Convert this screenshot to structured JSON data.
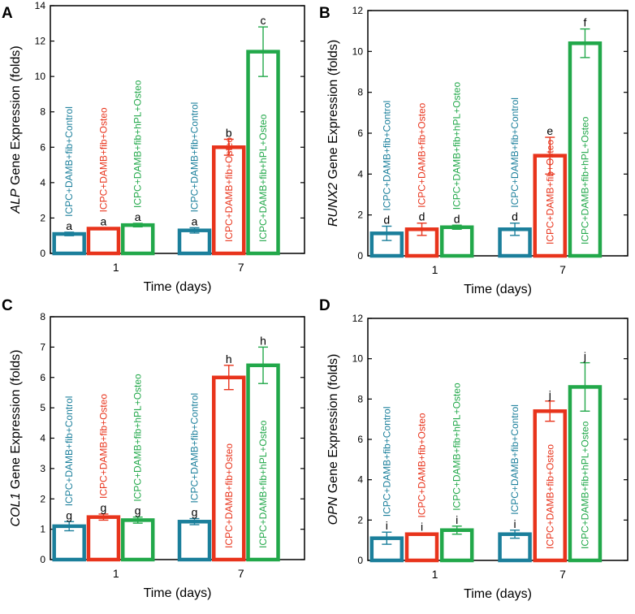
{
  "colors": {
    "control": "#1b7f9b",
    "osteo": "#e8341c",
    "hpl": "#22a84a",
    "axis": "#000000"
  },
  "chart_data": [
    {
      "panel": "A",
      "type": "bar",
      "gene": "ALP",
      "ylabel_suffix": "Gene Expression (folds)",
      "xlabel": "Time (days)",
      "categories": [
        "1",
        "7"
      ],
      "ylim": [
        0,
        14
      ],
      "yticks": [
        "0",
        "2",
        "4",
        "6",
        "8",
        "10",
        "12",
        "14"
      ],
      "series": [
        {
          "name": "ICPC+DAMB+fib+Control",
          "color_key": "control",
          "values": [
            1.1,
            1.3
          ],
          "errors": [
            0.1,
            0.15
          ],
          "letters": [
            "a",
            "a"
          ]
        },
        {
          "name": "ICPC+DAMB+fib+Osteo",
          "color_key": "osteo",
          "values": [
            1.4,
            6.0
          ],
          "errors": [
            0.05,
            0.45
          ],
          "letters": [
            "a",
            "b"
          ]
        },
        {
          "name": "ICPC+DAMB+fib+hPL+Osteo",
          "color_key": "hpl",
          "values": [
            1.6,
            11.4
          ],
          "errors": [
            0.1,
            1.4
          ],
          "letters": [
            "a",
            "c"
          ]
        }
      ]
    },
    {
      "panel": "B",
      "type": "bar",
      "gene": "RUNX2",
      "ylabel_suffix": "Gene Expression (folds)",
      "xlabel": "Time (days)",
      "categories": [
        "1",
        "7"
      ],
      "ylim": [
        0,
        12
      ],
      "yticks": [
        "0",
        "2",
        "4",
        "6",
        "8",
        "10",
        "12"
      ],
      "series": [
        {
          "name": "ICPC+DAMB+fib+Control",
          "color_key": "control",
          "values": [
            1.1,
            1.3
          ],
          "errors": [
            0.35,
            0.3
          ],
          "letters": [
            "d",
            "d"
          ]
        },
        {
          "name": "ICPC+DAMB+fib+Osteo",
          "color_key": "osteo",
          "values": [
            1.3,
            4.9
          ],
          "errors": [
            0.3,
            0.9
          ],
          "letters": [
            "d",
            "e"
          ]
        },
        {
          "name": "ICPC+DAMB+fib+hPL+Osteo",
          "color_key": "hpl",
          "values": [
            1.4,
            10.4
          ],
          "errors": [
            0.1,
            0.7
          ],
          "letters": [
            "d",
            "f"
          ]
        }
      ]
    },
    {
      "panel": "C",
      "type": "bar",
      "gene": "COL1",
      "ylabel_suffix": "Gene Expression (folds)",
      "xlabel": "Time (days)",
      "categories": [
        "1",
        "7"
      ],
      "ylim": [
        0,
        8
      ],
      "yticks": [
        "0",
        "1",
        "2",
        "3",
        "4",
        "5",
        "6",
        "7",
        "8"
      ],
      "series": [
        {
          "name": "ICPC+DAMB+fib+Control",
          "color_key": "control",
          "values": [
            1.1,
            1.25
          ],
          "errors": [
            0.15,
            0.1
          ],
          "letters": [
            "g",
            "g"
          ]
        },
        {
          "name": "ICPC+DAMB+fib+Osteo",
          "color_key": "osteo",
          "values": [
            1.4,
            6.0
          ],
          "errors": [
            0.1,
            0.4
          ],
          "letters": [
            "g",
            "h"
          ]
        },
        {
          "name": "ICPC+DAMB+fib+hPL+Osteo",
          "color_key": "hpl",
          "values": [
            1.3,
            6.4
          ],
          "errors": [
            0.1,
            0.6
          ],
          "letters": [
            "g",
            "h"
          ]
        }
      ]
    },
    {
      "panel": "D",
      "type": "bar",
      "gene": "OPN",
      "ylabel_suffix": "Gene Expression (folds)",
      "xlabel": "Time (days)",
      "categories": [
        "1",
        "7"
      ],
      "ylim": [
        0,
        12
      ],
      "yticks": [
        "0",
        "2",
        "4",
        "6",
        "8",
        "10",
        "12"
      ],
      "series": [
        {
          "name": "ICPC+DAMB+fib+Control",
          "color_key": "control",
          "values": [
            1.1,
            1.3
          ],
          "errors": [
            0.3,
            0.2
          ],
          "letters": [
            "i",
            "i"
          ]
        },
        {
          "name": "ICPC+DAMB+fib+Osteo",
          "color_key": "osteo",
          "values": [
            1.3,
            7.4
          ],
          "errors": [
            0.05,
            0.5
          ],
          "letters": [
            "i",
            "j"
          ]
        },
        {
          "name": "ICPC+DAMB+fib+hPL+Osteo",
          "color_key": "hpl",
          "values": [
            1.5,
            8.6
          ],
          "errors": [
            0.2,
            1.2
          ],
          "letters": [
            "i",
            "j"
          ]
        }
      ]
    }
  ]
}
